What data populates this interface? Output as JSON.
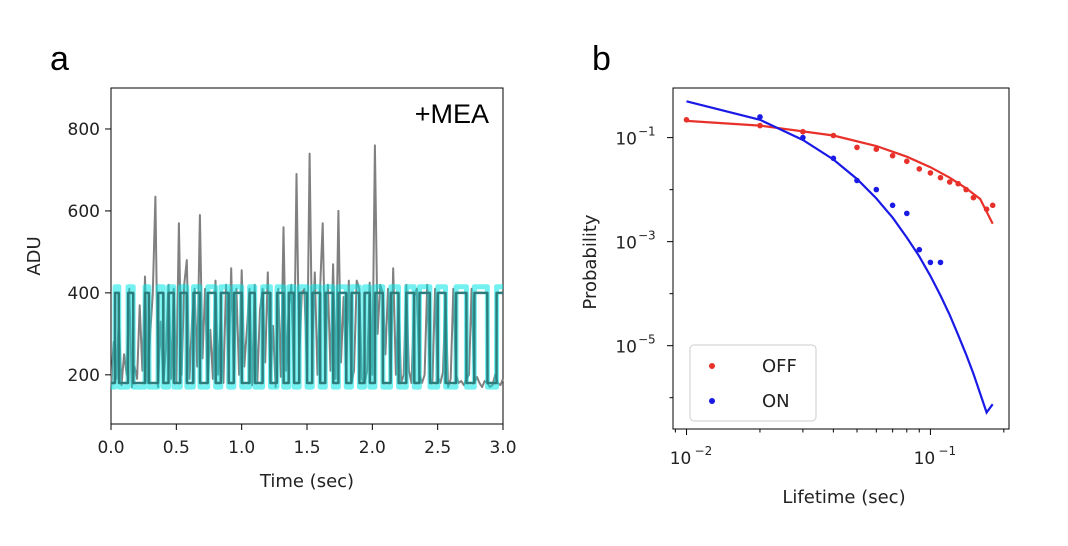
{
  "chart_data": [
    {
      "panel": "a",
      "type": "line",
      "xlabel": "Time (sec)",
      "ylabel": "ADU",
      "xlim": [
        0.0,
        3.0
      ],
      "ylim": [
        80,
        900
      ],
      "xticks": [
        0.0,
        0.5,
        1.0,
        1.5,
        2.0,
        2.5,
        3.0
      ],
      "xtick_labels": [
        "0.0",
        "0.5",
        "1.0",
        "1.5",
        "2.0",
        "2.5",
        "3.0"
      ],
      "yticks": [
        200,
        400,
        600,
        800
      ],
      "ytick_labels": [
        "200",
        "400",
        "600",
        "800"
      ],
      "annotation": "+MEA",
      "grid": false,
      "series": [
        {
          "color": "#808080",
          "x": [
            0.0,
            0.02,
            0.04,
            0.06,
            0.08,
            0.1,
            0.12,
            0.14,
            0.16,
            0.18,
            0.2,
            0.22,
            0.24,
            0.26,
            0.28,
            0.3,
            0.32,
            0.34,
            0.36,
            0.38,
            0.4,
            0.42,
            0.44,
            0.46,
            0.48,
            0.5,
            0.52,
            0.54,
            0.56,
            0.58,
            0.6,
            0.62,
            0.64,
            0.66,
            0.68,
            0.7,
            0.72,
            0.74,
            0.76,
            0.78,
            0.8,
            0.82,
            0.84,
            0.86,
            0.88,
            0.9,
            0.92,
            0.94,
            0.96,
            0.98,
            1.0,
            1.02,
            1.04,
            1.06,
            1.08,
            1.1,
            1.12,
            1.14,
            1.16,
            1.18,
            1.2,
            1.22,
            1.24,
            1.26,
            1.28,
            1.3,
            1.32,
            1.34,
            1.36,
            1.38,
            1.4,
            1.42,
            1.44,
            1.46,
            1.48,
            1.5,
            1.52,
            1.54,
            1.56,
            1.58,
            1.6,
            1.62,
            1.64,
            1.66,
            1.68,
            1.7,
            1.72,
            1.74,
            1.76,
            1.78,
            1.8,
            1.82,
            1.84,
            1.86,
            1.88,
            1.9,
            1.92,
            1.94,
            1.96,
            1.98,
            2.0,
            2.02,
            2.04,
            2.06,
            2.08,
            2.1,
            2.12,
            2.14,
            2.16,
            2.18,
            2.2,
            2.22,
            2.24,
            2.26,
            2.28,
            2.3,
            2.32,
            2.34,
            2.36,
            2.38,
            2.4,
            2.42,
            2.44,
            2.46,
            2.48,
            2.5,
            2.52,
            2.54,
            2.56,
            2.58,
            2.6,
            2.62,
            2.64,
            2.66,
            2.68,
            2.7,
            2.72,
            2.74,
            2.76,
            2.78,
            2.8,
            2.82,
            2.84,
            2.86,
            2.88,
            2.9,
            2.92,
            2.94,
            2.96,
            2.98,
            3.0
          ],
          "y": [
            165,
            280,
            190,
            330,
            175,
            250,
            200,
            410,
            170,
            220,
            190,
            370,
            210,
            440,
            180,
            300,
            400,
            635,
            170,
            330,
            180,
            260,
            420,
            190,
            410,
            180,
            570,
            200,
            420,
            480,
            190,
            330,
            410,
            220,
            590,
            240,
            410,
            180,
            310,
            190,
            430,
            200,
            350,
            180,
            420,
            215,
            460,
            185,
            410,
            200,
            455,
            220,
            310,
            410,
            175,
            420,
            180,
            360,
            410,
            230,
            450,
            190,
            320,
            170,
            410,
            195,
            560,
            210,
            360,
            420,
            190,
            690,
            240,
            400,
            410,
            200,
            740,
            260,
            450,
            200,
            410,
            570,
            240,
            420,
            210,
            470,
            190,
            600,
            230,
            390,
            200,
            430,
            180,
            210,
            430,
            410,
            190,
            180,
            210,
            425,
            200,
            760,
            300,
            420,
            400,
            250,
            410,
            190,
            460,
            200,
            380,
            180,
            200,
            420,
            210,
            180,
            390,
            410,
            200,
            180,
            200,
            420,
            190,
            180,
            410,
            195,
            180,
            205,
            390,
            170,
            190,
            410,
            200,
            180,
            185,
            175,
            190,
            200,
            410,
            180,
            195,
            180,
            170,
            185,
            180,
            170,
            175,
            200,
            180,
            175,
            190
          ]
        },
        {
          "color": "#00e5e5",
          "x": [
            0.0,
            0.03,
            0.031,
            0.06,
            0.061,
            0.13,
            0.131,
            0.17,
            0.171,
            0.26,
            0.261,
            0.29,
            0.291,
            0.36,
            0.361,
            0.4,
            0.401,
            0.44,
            0.441,
            0.48,
            0.481,
            0.53,
            0.531,
            0.58,
            0.581,
            0.63,
            0.631,
            0.68,
            0.681,
            0.74,
            0.741,
            0.8,
            0.801,
            0.84,
            0.841,
            0.9,
            0.901,
            0.94,
            0.941,
            1.0,
            1.001,
            1.06,
            1.061,
            1.1,
            1.101,
            1.16,
            1.161,
            1.22,
            1.221,
            1.27,
            1.271,
            1.32,
            1.321,
            1.36,
            1.361,
            1.4,
            1.401,
            1.44,
            1.441,
            1.5,
            1.501,
            1.54,
            1.541,
            1.6,
            1.601,
            1.64,
            1.641,
            1.7,
            1.701,
            1.74,
            1.741,
            1.8,
            1.801,
            1.84,
            1.841,
            1.9,
            1.901,
            1.94,
            1.941,
            1.98,
            1.981,
            2.02,
            2.021,
            2.08,
            2.081,
            2.14,
            2.141,
            2.2,
            2.201,
            2.26,
            2.261,
            2.32,
            2.321,
            2.36,
            2.361,
            2.44,
            2.441,
            2.5,
            2.501,
            2.56,
            2.561,
            2.64,
            2.641,
            2.72,
            2.721,
            2.78,
            2.781,
            2.88,
            2.881,
            2.95,
            2.951,
            3.0
          ],
          "y": [
            170,
            170,
            415,
            415,
            170,
            170,
            415,
            415,
            170,
            170,
            415,
            415,
            170,
            170,
            415,
            415,
            170,
            170,
            415,
            415,
            170,
            170,
            415,
            415,
            170,
            170,
            415,
            415,
            170,
            170,
            415,
            415,
            170,
            170,
            415,
            415,
            170,
            170,
            415,
            415,
            170,
            170,
            415,
            415,
            170,
            170,
            415,
            415,
            170,
            170,
            415,
            415,
            170,
            170,
            415,
            415,
            170,
            170,
            415,
            415,
            170,
            170,
            415,
            415,
            170,
            170,
            415,
            415,
            170,
            170,
            415,
            415,
            170,
            170,
            415,
            415,
            170,
            170,
            415,
            415,
            170,
            170,
            415,
            415,
            170,
            170,
            415,
            415,
            170,
            170,
            415,
            415,
            170,
            170,
            415,
            415,
            170,
            170,
            415,
            415,
            170,
            170,
            415,
            415,
            170,
            170,
            415,
            415,
            170,
            170,
            415,
            415
          ]
        },
        {
          "color": "#2e7d7d",
          "x": [
            0.0,
            0.03,
            0.031,
            0.06,
            0.061,
            0.13,
            0.131,
            0.17,
            0.171,
            0.26,
            0.261,
            0.29,
            0.291,
            0.36,
            0.361,
            0.4,
            0.401,
            0.44,
            0.441,
            0.48,
            0.481,
            0.53,
            0.531,
            0.58,
            0.581,
            0.63,
            0.631,
            0.68,
            0.681,
            0.74,
            0.741,
            0.8,
            0.801,
            0.84,
            0.841,
            0.9,
            0.901,
            0.94,
            0.941,
            1.0,
            1.001,
            1.06,
            1.061,
            1.1,
            1.101,
            1.16,
            1.161,
            1.22,
            1.221,
            1.27,
            1.271,
            1.32,
            1.321,
            1.36,
            1.361,
            1.4,
            1.401,
            1.44,
            1.441,
            1.5,
            1.501,
            1.54,
            1.541,
            1.6,
            1.601,
            1.64,
            1.641,
            1.7,
            1.701,
            1.74,
            1.741,
            1.8,
            1.801,
            1.84,
            1.841,
            1.9,
            1.901,
            1.94,
            1.941,
            1.98,
            1.981,
            2.02,
            2.021,
            2.08,
            2.081,
            2.14,
            2.141,
            2.2,
            2.201,
            2.26,
            2.261,
            2.32,
            2.321,
            2.36,
            2.361,
            2.44,
            2.441,
            2.5,
            2.501,
            2.56,
            2.561,
            2.64,
            2.641,
            2.72,
            2.721,
            2.78,
            2.781,
            2.88,
            2.881,
            2.95,
            2.951,
            3.0
          ],
          "y": [
            180,
            180,
            400,
            400,
            180,
            180,
            400,
            400,
            180,
            180,
            400,
            400,
            180,
            180,
            400,
            400,
            180,
            180,
            400,
            400,
            180,
            180,
            400,
            400,
            180,
            180,
            400,
            400,
            180,
            180,
            400,
            400,
            180,
            180,
            400,
            400,
            180,
            180,
            400,
            400,
            180,
            180,
            400,
            400,
            180,
            180,
            400,
            400,
            180,
            180,
            400,
            400,
            180,
            180,
            400,
            400,
            180,
            180,
            400,
            400,
            180,
            180,
            400,
            400,
            180,
            180,
            400,
            400,
            180,
            180,
            400,
            400,
            180,
            180,
            400,
            400,
            180,
            180,
            400,
            400,
            180,
            180,
            400,
            400,
            180,
            180,
            400,
            400,
            180,
            180,
            400,
            400,
            180,
            180,
            400,
            400,
            180,
            180,
            400,
            400,
            180,
            180,
            400,
            400,
            180,
            180,
            400,
            400,
            180,
            180,
            400,
            400
          ]
        }
      ]
    },
    {
      "panel": "b",
      "type": "scatter",
      "xlabel": "Lifetime (sec)",
      "ylabel": "Probability",
      "xscale": "log",
      "yscale": "log",
      "xlim": [
        0.0088,
        0.21
      ],
      "ylim": [
        2.5e-07,
        0.9
      ],
      "xticks": [
        0.01,
        0.1
      ],
      "xtick_labels": [
        "10",
        "10"
      ],
      "xtick_exponents": [
        "−2",
        "−1"
      ],
      "yticks": [
        1e-05,
        0.001,
        0.1
      ],
      "ytick_labels": [
        "10",
        "10",
        "10"
      ],
      "ytick_exponents": [
        "−5",
        "−3",
        "−1"
      ],
      "grid": false,
      "legend_position": "lower-left",
      "series": [
        {
          "name": "OFF",
          "color": "#e8312a",
          "x": [
            0.01,
            0.02,
            0.03,
            0.04,
            0.05,
            0.06,
            0.07,
            0.08,
            0.09,
            0.1,
            0.11,
            0.12,
            0.13,
            0.14,
            0.15,
            0.17,
            0.18
          ],
          "y": [
            0.22,
            0.17,
            0.13,
            0.11,
            0.065,
            0.06,
            0.045,
            0.035,
            0.025,
            0.021,
            0.017,
            0.014,
            0.013,
            0.01,
            0.007,
            0.0042,
            0.005
          ],
          "fit_x": [
            0.01,
            0.02,
            0.04,
            0.06,
            0.08,
            0.1,
            0.12,
            0.14,
            0.16,
            0.18
          ],
          "fit_y": [
            0.21,
            0.17,
            0.11,
            0.069,
            0.043,
            0.027,
            0.017,
            0.0106,
            0.0066,
            0.0022
          ]
        },
        {
          "name": "ON",
          "color": "#1a1ae6",
          "x": [
            0.02,
            0.03,
            0.04,
            0.05,
            0.06,
            0.07,
            0.08,
            0.09,
            0.1,
            0.11
          ],
          "y": [
            0.25,
            0.1,
            0.04,
            0.015,
            0.01,
            0.005,
            0.0035,
            0.0007,
            0.0004,
            0.0004
          ],
          "fit_x": [
            0.01,
            0.02,
            0.03,
            0.04,
            0.05,
            0.06,
            0.07,
            0.08,
            0.09,
            0.1,
            0.11,
            0.12,
            0.13,
            0.14,
            0.15,
            0.16,
            0.17,
            0.18
          ],
          "fit_y": [
            0.5,
            0.22,
            0.09,
            0.038,
            0.016,
            0.0068,
            0.0029,
            0.0012,
            0.00052,
            0.00022,
            9.2e-05,
            3.9e-05,
            1.6e-05,
            6.8e-06,
            2.9e-06,
            1.2e-06,
            5.2e-07,
            7.5e-07
          ]
        }
      ]
    }
  ]
}
